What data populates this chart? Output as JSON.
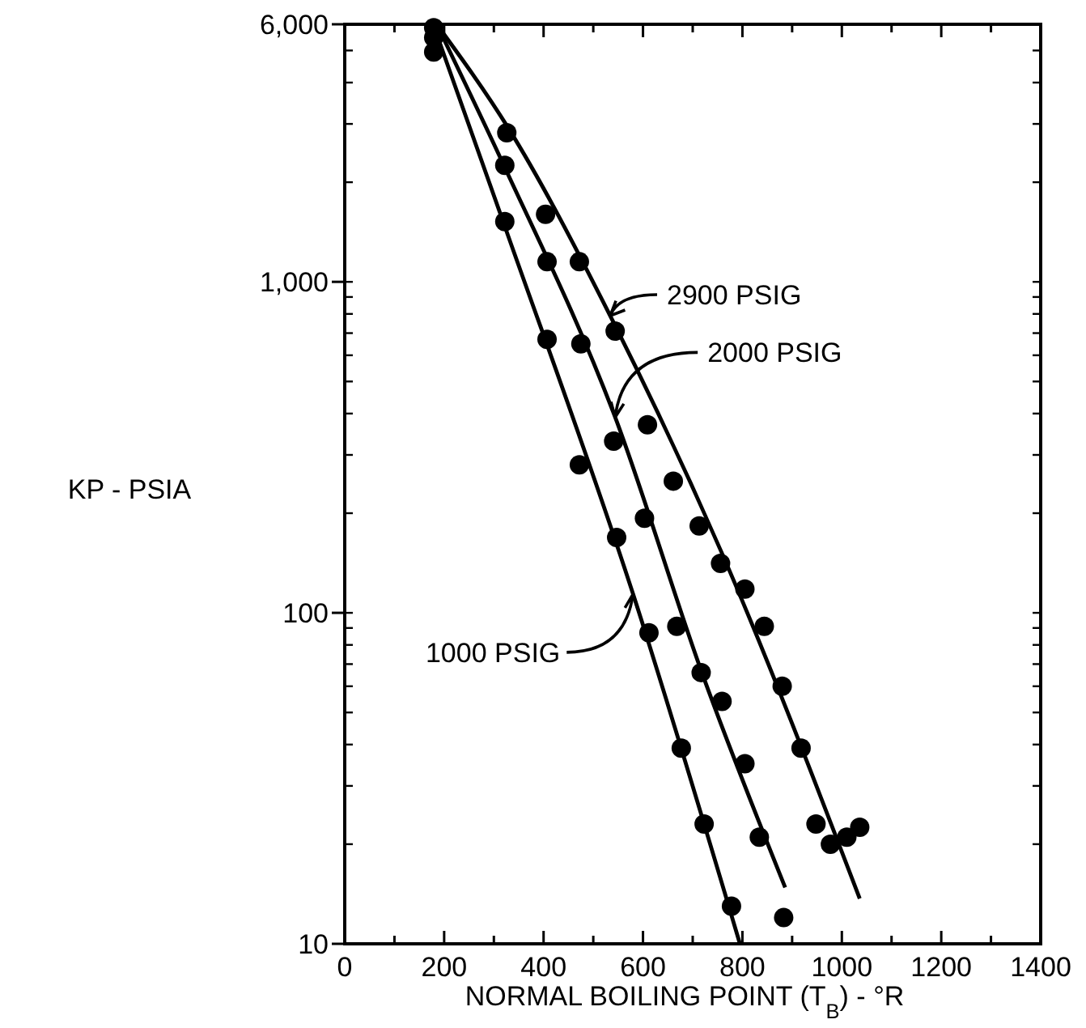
{
  "chart_data": {
    "type": "scatter",
    "xlabel": "NORMAL BOILING POINT (T$_{B}$) - °R",
    "ylabel": "KP - PSIA",
    "log": "y",
    "grid": false,
    "marker": "circle",
    "xlim": [
      0,
      1400
    ],
    "ylim": [
      10,
      6000
    ],
    "xticks": [
      0,
      {
        "value": 100,
        "label": null
      },
      200,
      {
        "value": 300,
        "label": null
      },
      400,
      {
        "value": 500,
        "label": null
      },
      600,
      {
        "value": 700,
        "label": null
      },
      800,
      {
        "value": 900,
        "label": null
      },
      1000,
      {
        "value": 1100,
        "label": null
      },
      1200,
      {
        "value": 1300,
        "label": null
      },
      1400
    ],
    "yticks": [
      10,
      {
        "value": 20,
        "label": null
      },
      {
        "value": 30,
        "label": null
      },
      {
        "value": 40,
        "label": null
      },
      {
        "value": 50,
        "label": null
      },
      {
        "value": 60,
        "label": null
      },
      {
        "value": 70,
        "label": null
      },
      {
        "value": 80,
        "label": null
      },
      {
        "value": 90,
        "label": null
      },
      100,
      {
        "value": 200,
        "label": null
      },
      {
        "value": 300,
        "label": null
      },
      {
        "value": 400,
        "label": null
      },
      {
        "value": 500,
        "label": null
      },
      {
        "value": 600,
        "label": null
      },
      {
        "value": 700,
        "label": null
      },
      {
        "value": 800,
        "label": null
      },
      {
        "value": 900,
        "label": null
      },
      {
        "value": 1000,
        "label": "1,000"
      },
      {
        "value": 2000,
        "label": null
      },
      {
        "value": 3000,
        "label": null
      },
      {
        "value": 4000,
        "label": null
      },
      {
        "value": 5000,
        "label": null
      },
      {
        "value": 6000,
        "label": "6,000"
      }
    ],
    "series": [
      {
        "color": "#000000",
        "x": [
          179,
          326,
          404,
          472,
          544,
          609,
          661,
          713,
          756,
          805,
          844,
          880,
          918,
          948,
          977,
          1010,
          1036
        ],
        "values": [
          5860,
          2820,
          1600,
          1150,
          710,
          370,
          250,
          183,
          141,
          118,
          91,
          60,
          39,
          23,
          20,
          21,
          22.5
        ]
      },
      {
        "color": "#000000",
        "x": [
          179,
          322,
          407,
          475,
          541,
          603,
          668,
          717,
          759,
          805,
          834,
          883
        ],
        "values": [
          5470,
          2250,
          1150,
          650,
          330,
          193,
          91,
          66,
          54,
          35,
          21,
          12
        ]
      },
      {
        "color": "#000000",
        "x": [
          179,
          322,
          407,
          472,
          547,
          612,
          677,
          723,
          778
        ],
        "values": [
          4950,
          1520,
          670,
          280,
          169,
          87,
          39,
          23,
          13
        ]
      },
      {
        "type": "line",
        "color": "#000000",
        "marker": "none",
        "x": [
          185,
          330,
          534,
          760,
          1036
        ],
        "values": [
          6000,
          2900,
          790,
          150,
          13.7
        ]
      },
      {
        "type": "line",
        "color": "#000000",
        "marker": "none",
        "x": [
          185,
          320,
          544,
          720,
          886
        ],
        "values": [
          6000,
          2250,
          390,
          65,
          14.8
        ]
      },
      {
        "type": "line",
        "color": "#000000",
        "marker": "none",
        "x": [
          185,
          320,
          580,
          795
        ],
        "values": [
          5600,
          1500,
          114,
          10
        ]
      }
    ],
    "annotations": [
      {
        "text": "2900 PSIG",
        "x": 534,
        "y": 790
      },
      {
        "text": "2000 PSIG",
        "x": 544,
        "y": 390
      },
      {
        "text": "1000 PSIG",
        "x": 580,
        "y": 114
      }
    ]
  }
}
